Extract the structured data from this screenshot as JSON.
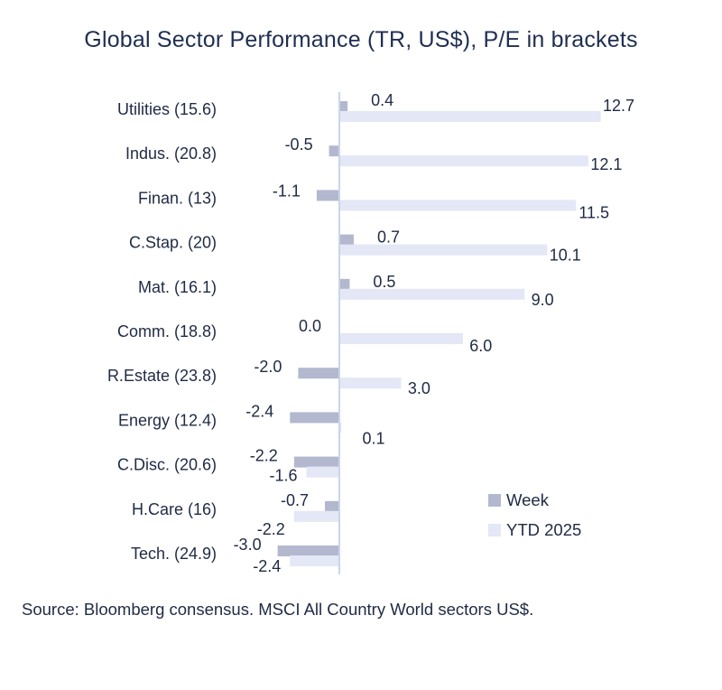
{
  "chart_data": {
    "type": "bar",
    "orientation": "horizontal",
    "title": "Global Sector Performance (TR, US$), P/E in brackets",
    "categories": [
      "Utilities (15.6)",
      "Indus. (20.8)",
      "Finan. (13)",
      "C.Stap. (20)",
      "Mat. (16.1)",
      "Comm. (18.8)",
      "R.Estate (23.8)",
      "Energy (12.4)",
      "C.Disc. (20.6)",
      "H.Care (16)",
      "Tech. (24.9)"
    ],
    "series": [
      {
        "name": "Week",
        "color": "#b3b8cf",
        "values": [
          0.4,
          -0.5,
          -1.1,
          0.7,
          0.5,
          0.0,
          -2.0,
          -2.4,
          -2.2,
          -0.7,
          -3.0
        ],
        "labels": [
          "0.4",
          "-0.5",
          "-1.1",
          "0.7",
          "0.5",
          "0.0",
          "-2.0",
          "-2.4",
          "-2.2",
          "-0.7",
          "-3.0"
        ]
      },
      {
        "name": "YTD 2025",
        "color": "#e3e7f6",
        "values": [
          12.7,
          12.1,
          11.5,
          10.1,
          9.0,
          6.0,
          3.0,
          0.1,
          -1.6,
          -2.2,
          -2.4
        ],
        "labels": [
          "12.7",
          "12.1",
          "11.5",
          "10.1",
          "9.0",
          "6.0",
          "3.0",
          "0.1",
          "-1.6",
          "-2.2",
          "-2.4"
        ]
      }
    ],
    "legend_position": "bottom-right",
    "grid": false,
    "axis_color": "#c9d6ea"
  },
  "source": "Source: Bloomberg consensus. MSCI All Country World sectors US$."
}
